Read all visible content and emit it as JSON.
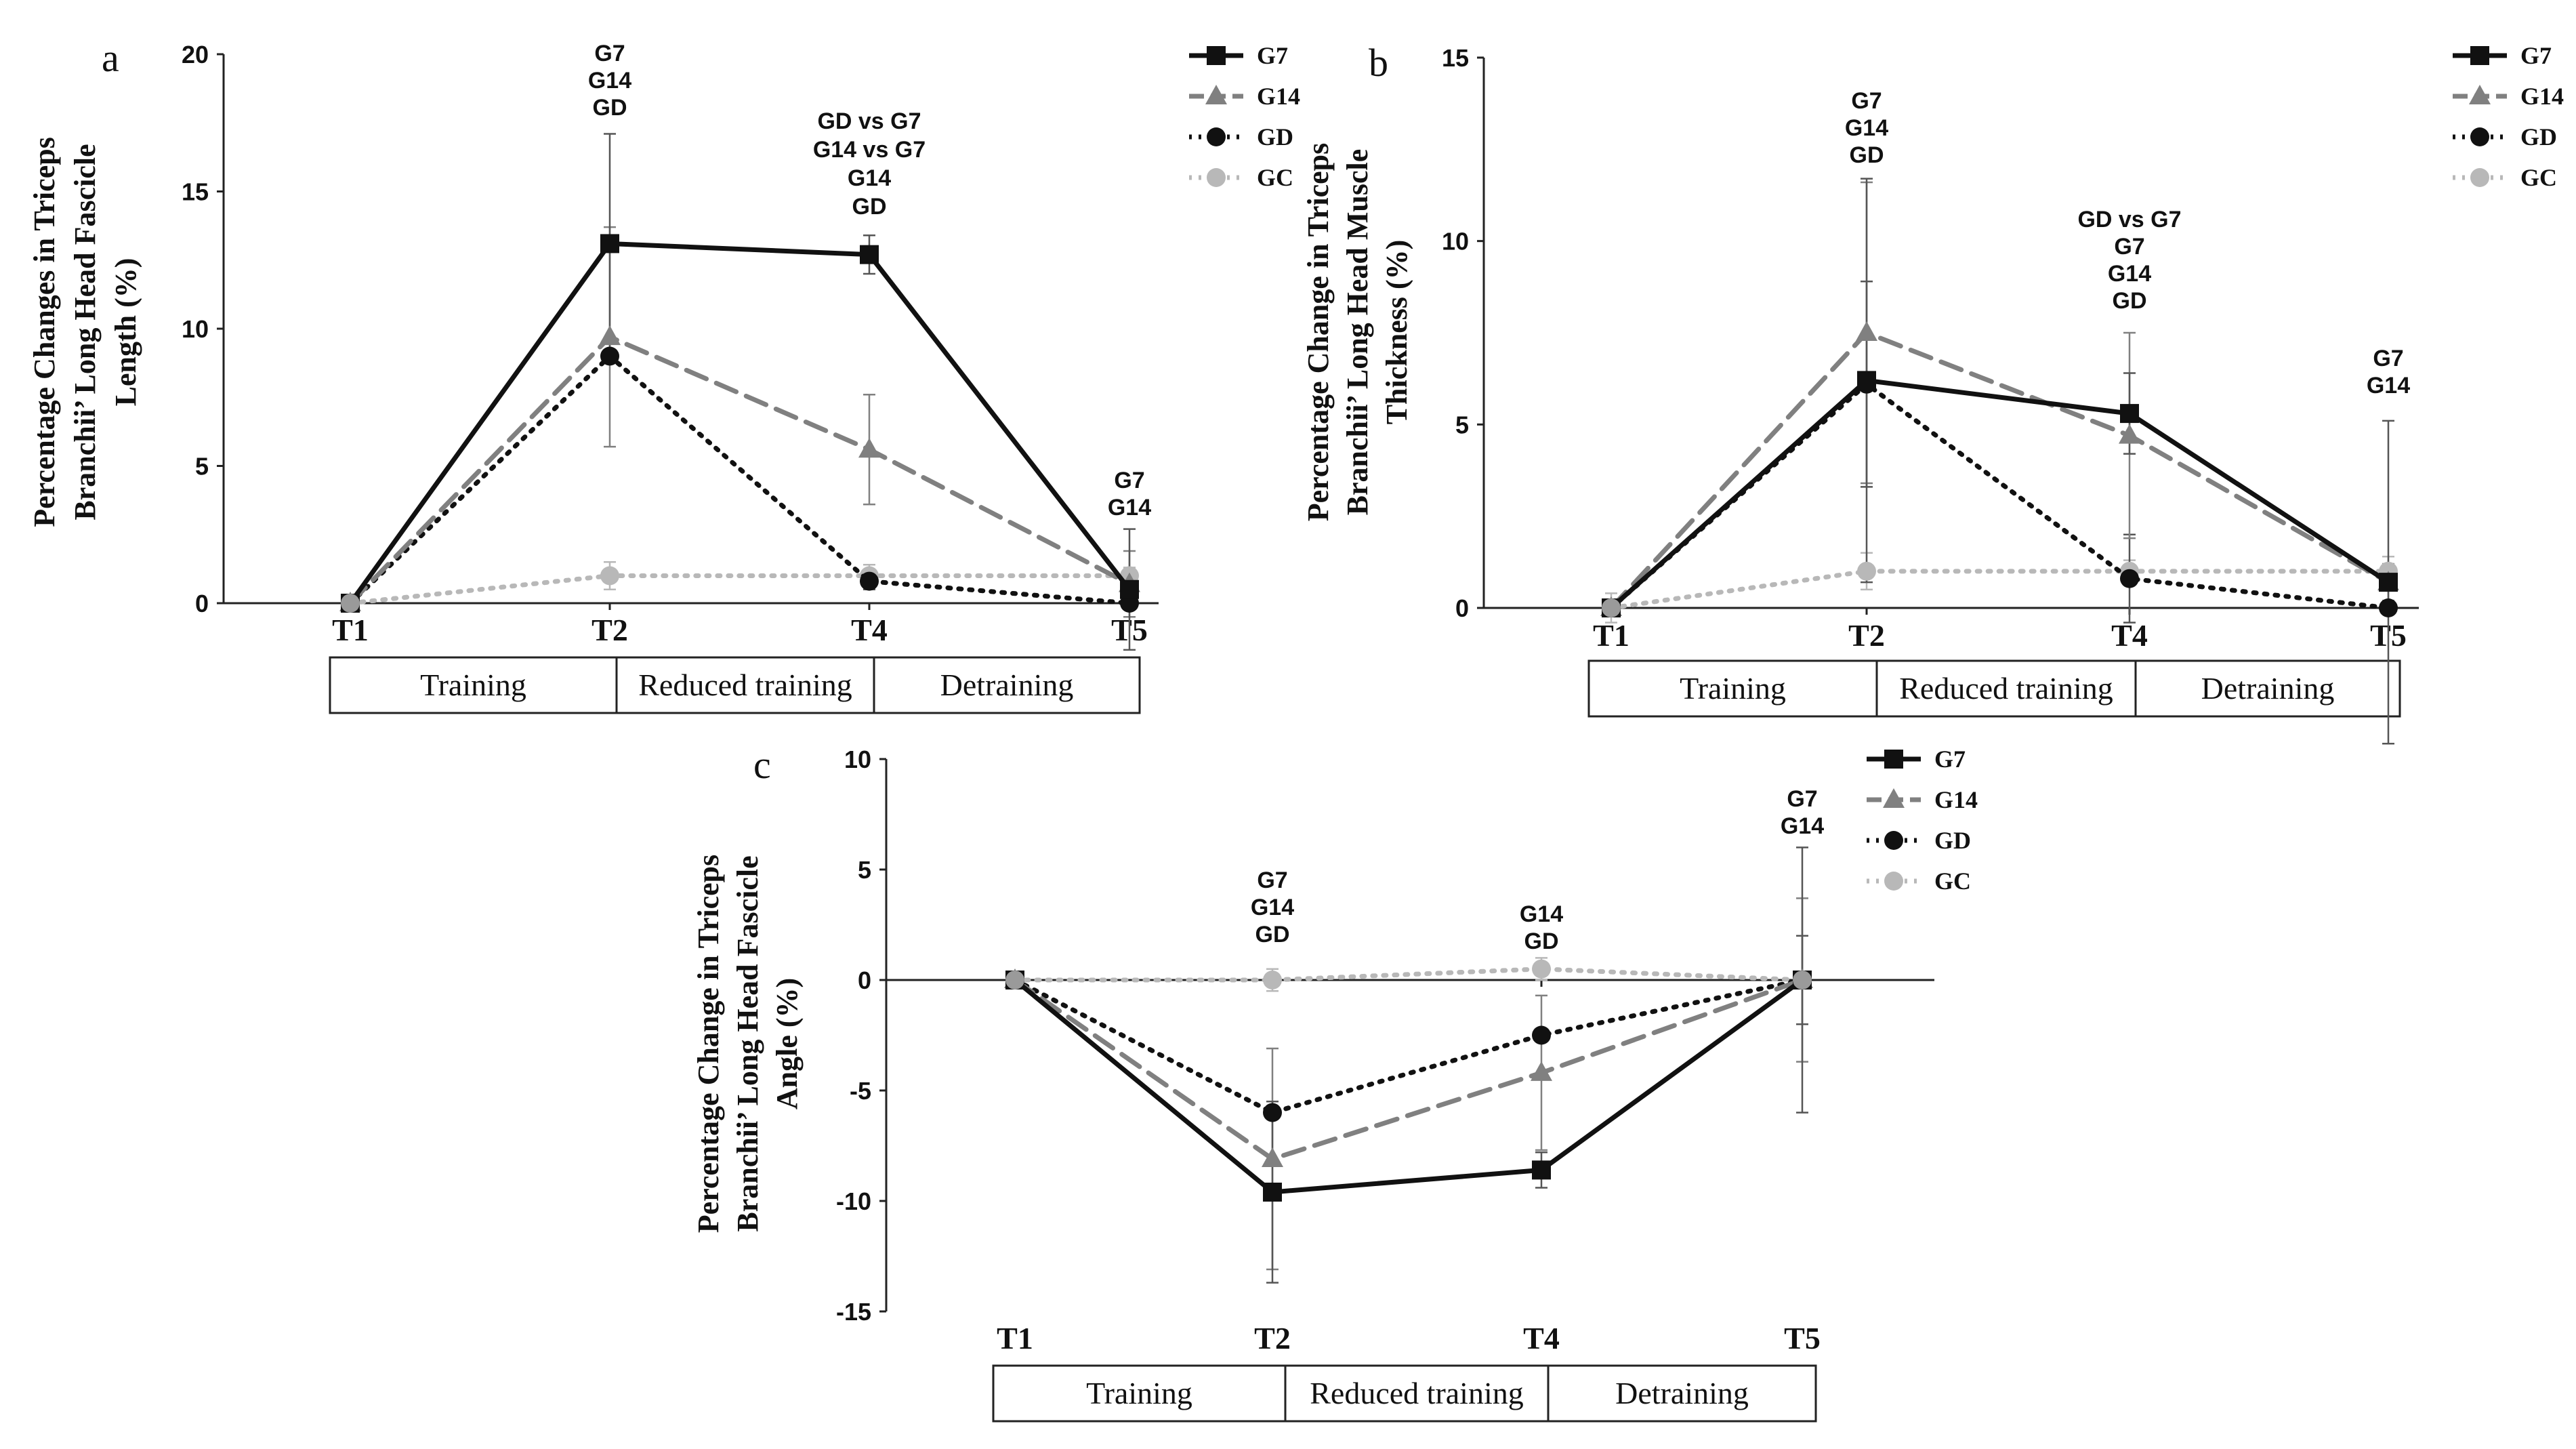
{
  "legend_labels": [
    "G7",
    "G14",
    "GD",
    "GC"
  ],
  "styles": {
    "G7": {
      "color": "#111111",
      "dash": "",
      "marker": "square",
      "width": 7
    },
    "G14": {
      "color": "#808080",
      "dash": "32,16",
      "marker": "triangle",
      "width": 7
    },
    "GD": {
      "color": "#111111",
      "dash": "4,12",
      "marker": "circle",
      "width": 7
    },
    "GC": {
      "color": "#b8b8b8",
      "dash": "4,12",
      "marker": "circle",
      "width": 7
    }
  },
  "chart_data": [
    {
      "panel": "a",
      "type": "line",
      "ylabel_lines": [
        "Percentage Changes in Triceps",
        "Branchii’ Long Head Fascicle",
        "Length (%)"
      ],
      "categories": [
        "T1",
        "T2",
        "T4",
        "T5"
      ],
      "ylim": [
        0,
        20
      ],
      "yticks": [
        0,
        5,
        10,
        15,
        20
      ],
      "phases": [
        "Training",
        "Reduced training",
        "Detraining"
      ],
      "series": [
        {
          "name": "G7",
          "values": [
            0,
            13.1,
            12.7,
            0.5
          ],
          "errors": [
            0,
            4.0,
            0.7,
            2.2
          ]
        },
        {
          "name": "G14",
          "values": [
            0,
            9.7,
            5.6,
            0.7
          ],
          "errors": [
            0,
            4.0,
            2.0,
            1.2
          ]
        },
        {
          "name": "GD",
          "values": [
            0,
            9.0,
            0.8,
            0
          ],
          "errors": [
            0,
            0,
            0.3,
            0
          ]
        },
        {
          "name": "GC",
          "values": [
            0,
            1.0,
            1.0,
            1.0
          ],
          "errors": [
            0.2,
            0.5,
            0.4,
            0.3
          ]
        }
      ],
      "annotations": [
        {
          "x": "T2",
          "lines": [
            "G7",
            "G14",
            "GD"
          ]
        },
        {
          "x": "T4",
          "lines": [
            "GD vs G7",
            "G14 vs G7",
            "G14",
            "GD"
          ]
        },
        {
          "x": "T5",
          "lines": [
            "G7",
            "G14"
          ]
        }
      ]
    },
    {
      "panel": "b",
      "type": "line",
      "ylabel_lines": [
        "Percentage Change in Triceps",
        "Branchii’ Long Head Muscle",
        "Thickness (%)"
      ],
      "categories": [
        "T1",
        "T2",
        "T4",
        "T5"
      ],
      "ylim": [
        0,
        15
      ],
      "yticks": [
        0,
        5,
        10,
        15
      ],
      "phases": [
        "Training",
        "Reduced training",
        "Detraining"
      ],
      "series": [
        {
          "name": "G7",
          "values": [
            0,
            6.2,
            5.3,
            0.7
          ],
          "errors": [
            0,
            5.5,
            1.1,
            4.4
          ]
        },
        {
          "name": "G14",
          "values": [
            0,
            7.5,
            4.7,
            0.7
          ],
          "errors": [
            0,
            4.1,
            2.8,
            0.5
          ]
        },
        {
          "name": "GD",
          "values": [
            0,
            6.1,
            0.8,
            0
          ],
          "errors": [
            0,
            2.8,
            1.2,
            0
          ]
        },
        {
          "name": "GC",
          "values": [
            0,
            1.0,
            1.0,
            1.0
          ],
          "errors": [
            0.4,
            0.5,
            0.3,
            0.4
          ]
        }
      ],
      "annotations": [
        {
          "x": "T2",
          "lines": [
            "G7",
            "G14",
            "GD"
          ]
        },
        {
          "x": "T4",
          "lines": [
            "GD vs G7",
            "G7",
            "G14",
            "GD"
          ]
        },
        {
          "x": "T5",
          "lines": [
            "G7",
            "G14"
          ]
        }
      ]
    },
    {
      "panel": "c",
      "type": "line",
      "ylabel_lines": [
        "Percentage Change  in Triceps",
        "Branchii’ Long Head  Fascicle",
        "Angle (%)"
      ],
      "categories": [
        "T1",
        "T2",
        "T4",
        "T5"
      ],
      "ylim": [
        -15,
        10
      ],
      "yticks": [
        -15,
        -10,
        -5,
        0,
        5,
        10
      ],
      "phases": [
        "Training",
        "Reduced training",
        "Detraining"
      ],
      "series": [
        {
          "name": "G7",
          "values": [
            0,
            -9.6,
            -8.6,
            0
          ],
          "errors": [
            0,
            4.1,
            0.8,
            6.0
          ]
        },
        {
          "name": "G14",
          "values": [
            0,
            -8.1,
            -4.2,
            0
          ],
          "errors": [
            0,
            5.0,
            3.5,
            3.7
          ]
        },
        {
          "name": "GD",
          "values": [
            0,
            -6.0,
            -2.5,
            0
          ],
          "errors": [
            0,
            0,
            0,
            2.0
          ]
        },
        {
          "name": "GC",
          "values": [
            0,
            0,
            0.5,
            0
          ],
          "errors": [
            0,
            0.5,
            0.5,
            0
          ]
        }
      ],
      "annotations": [
        {
          "x": "T2",
          "lines": [
            "G7",
            "G14",
            "GD"
          ]
        },
        {
          "x": "T4",
          "lines": [
            "G14",
            "GD"
          ]
        },
        {
          "x": "T5",
          "lines": [
            "G7",
            "G14"
          ]
        }
      ]
    }
  ]
}
